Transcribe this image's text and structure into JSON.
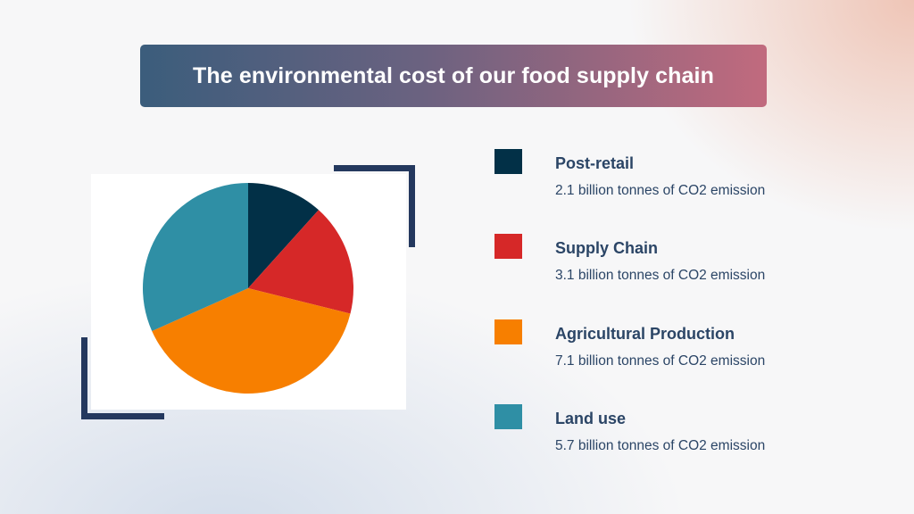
{
  "title": "The environmental cost of our food supply chain",
  "legend": [
    {
      "label": "Post-retail",
      "value_text": "2.1 billion tonnes of CO2 emission",
      "color": "#023047"
    },
    {
      "label": "Supply Chain",
      "value_text": "3.1 billion tonnes of CO2 emission",
      "color": "#d62828"
    },
    {
      "label": "Agricultural Production",
      "value_text": "7.1 billion tonnes of CO2 emission",
      "color": "#f77f00"
    },
    {
      "label": "Land use",
      "value_text": "5.7 billion tonnes of CO2 emission",
      "color": "#2f8fa5"
    }
  ],
  "chart_data": {
    "type": "pie",
    "title": "The environmental cost of our food supply chain",
    "categories": [
      "Post-retail",
      "Supply Chain",
      "Agricultural Production",
      "Land use"
    ],
    "values": [
      2.1,
      3.1,
      7.1,
      5.7
    ],
    "unit": "billion tonnes of CO2 emission",
    "colors": [
      "#023047",
      "#d62828",
      "#f77f00",
      "#2f8fa5"
    ],
    "start_angle": "12 o'clock",
    "direction": "clockwise",
    "legend_position": "right"
  }
}
